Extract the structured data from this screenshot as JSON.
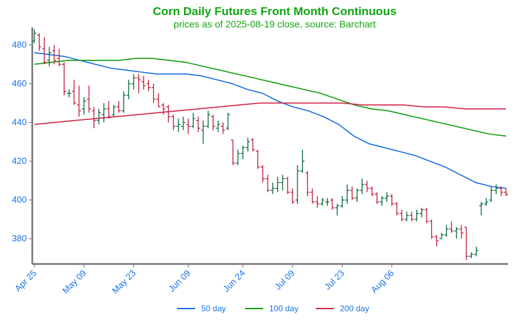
{
  "chart_data": {
    "type": "ohlc",
    "title": "Corn Daily Futures Front Month Continuous",
    "subtitle": "prices as of 2025-08-19 close, source: Barchart",
    "xlabel": "",
    "ylabel": "",
    "ylim": [
      367,
      489
    ],
    "y_ticks": [
      380,
      400,
      420,
      440,
      460,
      480
    ],
    "x_ticks": [
      "Apr 25",
      "May 09",
      "May 23",
      "Jun 09",
      "Jun 24",
      "Jul 09",
      "Jul 23",
      "Aug 06"
    ],
    "grid": false,
    "legend_position": "bottom",
    "colors": {
      "up": "#0b6a3a",
      "down": "#c0203a",
      "tick_text": "#1a73e8",
      "title": "#11a611"
    },
    "bars": [
      {
        "date": "Apr 25",
        "o": 482,
        "h": 488,
        "l": 481,
        "c": 486
      },
      {
        "date": "Apr 28",
        "o": 485,
        "h": 486,
        "l": 477,
        "c": 479
      },
      {
        "date": "Apr 29",
        "o": 478,
        "h": 484,
        "l": 470,
        "c": 471
      },
      {
        "date": "Apr 30",
        "o": 472,
        "h": 479,
        "l": 469,
        "c": 476
      },
      {
        "date": "May 01",
        "o": 477,
        "h": 480,
        "l": 470,
        "c": 472
      },
      {
        "date": "May 02",
        "o": 473,
        "h": 478,
        "l": 469,
        "c": 470
      },
      {
        "date": "May 05",
        "o": 470,
        "h": 471,
        "l": 454,
        "c": 456
      },
      {
        "date": "May 06",
        "o": 455,
        "h": 457,
        "l": 453,
        "c": 455
      },
      {
        "date": "May 07",
        "o": 456,
        "h": 462,
        "l": 449,
        "c": 450
      },
      {
        "date": "May 08",
        "o": 449,
        "h": 459,
        "l": 443,
        "c": 446
      },
      {
        "date": "May 09",
        "o": 447,
        "h": 453,
        "l": 444,
        "c": 451
      },
      {
        "date": "May 12",
        "o": 452,
        "h": 459,
        "l": 445,
        "c": 447
      },
      {
        "date": "May 13",
        "o": 446,
        "h": 448,
        "l": 437,
        "c": 441
      },
      {
        "date": "May 14",
        "o": 441,
        "h": 447,
        "l": 439,
        "c": 445
      },
      {
        "date": "May 15",
        "o": 444,
        "h": 450,
        "l": 440,
        "c": 447
      },
      {
        "date": "May 16",
        "o": 447,
        "h": 451,
        "l": 442,
        "c": 443
      },
      {
        "date": "May 19",
        "o": 444,
        "h": 449,
        "l": 443,
        "c": 448
      },
      {
        "date": "May 20",
        "o": 448,
        "h": 451,
        "l": 445,
        "c": 446
      },
      {
        "date": "May 21",
        "o": 446,
        "h": 456,
        "l": 445,
        "c": 454
      },
      {
        "date": "May 22",
        "o": 454,
        "h": 462,
        "l": 452,
        "c": 460
      },
      {
        "date": "May 23",
        "o": 460,
        "h": 465,
        "l": 457,
        "c": 463
      },
      {
        "date": "May 26",
        "o": 463,
        "h": 465,
        "l": 455,
        "c": 462
      },
      {
        "date": "May 27",
        "o": 461,
        "h": 464,
        "l": 457,
        "c": 459
      },
      {
        "date": "May 28",
        "o": 460,
        "h": 462,
        "l": 456,
        "c": 458
      },
      {
        "date": "May 29",
        "o": 458,
        "h": 460,
        "l": 450,
        "c": 452
      },
      {
        "date": "May 30",
        "o": 452,
        "h": 455,
        "l": 448,
        "c": 448
      },
      {
        "date": "Jun 02",
        "o": 449,
        "h": 450,
        "l": 444,
        "c": 447
      },
      {
        "date": "Jun 03",
        "o": 448,
        "h": 449,
        "l": 440,
        "c": 443
      },
      {
        "date": "Jun 04",
        "o": 443,
        "h": 444,
        "l": 436,
        "c": 438
      },
      {
        "date": "Jun 05",
        "o": 438,
        "h": 442,
        "l": 435,
        "c": 439
      },
      {
        "date": "Jun 06",
        "o": 438,
        "h": 443,
        "l": 436,
        "c": 440
      },
      {
        "date": "Jun 09",
        "o": 439,
        "h": 442,
        "l": 434,
        "c": 438
      },
      {
        "date": "Jun 10",
        "o": 438,
        "h": 445,
        "l": 437,
        "c": 442
      },
      {
        "date": "Jun 11",
        "o": 441,
        "h": 443,
        "l": 435,
        "c": 437
      },
      {
        "date": "Jun 12",
        "o": 436,
        "h": 441,
        "l": 429,
        "c": 438
      },
      {
        "date": "Jun 13",
        "o": 438,
        "h": 446,
        "l": 437,
        "c": 444
      },
      {
        "date": "Jun 16",
        "o": 443,
        "h": 444,
        "l": 436,
        "c": 438
      },
      {
        "date": "Jun 17",
        "o": 437,
        "h": 441,
        "l": 435,
        "c": 439
      },
      {
        "date": "Jun 18",
        "o": 438,
        "h": 440,
        "l": 434,
        "c": 436
      },
      {
        "date": "Jun 19",
        "o": 437,
        "h": 445,
        "l": 436,
        "c": 444
      },
      {
        "date": "Jun 20",
        "o": 431,
        "h": 431,
        "l": 418,
        "c": 419
      },
      {
        "date": "Jun 23",
        "o": 419,
        "h": 426,
        "l": 418,
        "c": 424
      },
      {
        "date": "Jun 24",
        "o": 424,
        "h": 428,
        "l": 421,
        "c": 427
      },
      {
        "date": "Jun 25",
        "o": 427,
        "h": 432,
        "l": 425,
        "c": 430
      },
      {
        "date": "Jun 26",
        "o": 431,
        "h": 432,
        "l": 425,
        "c": 426
      },
      {
        "date": "Jun 27",
        "o": 425,
        "h": 426,
        "l": 416,
        "c": 417
      },
      {
        "date": "Jun 30",
        "o": 417,
        "h": 418,
        "l": 409,
        "c": 411
      },
      {
        "date": "Jul 01",
        "o": 411,
        "h": 413,
        "l": 404,
        "c": 405
      },
      {
        "date": "Jul 02",
        "o": 405,
        "h": 409,
        "l": 403,
        "c": 406
      },
      {
        "date": "Jul 03",
        "o": 406,
        "h": 412,
        "l": 404,
        "c": 409
      },
      {
        "date": "Jul 07",
        "o": 409,
        "h": 413,
        "l": 405,
        "c": 411
      },
      {
        "date": "Jul 08",
        "o": 411,
        "h": 412,
        "l": 403,
        "c": 404
      },
      {
        "date": "Jul 09",
        "o": 404,
        "h": 406,
        "l": 398,
        "c": 399
      },
      {
        "date": "Jul 10",
        "o": 400,
        "h": 418,
        "l": 398,
        "c": 415
      },
      {
        "date": "Jul 11",
        "o": 415,
        "h": 426,
        "l": 414,
        "c": 420
      },
      {
        "date": "Jul 14",
        "o": 414,
        "h": 415,
        "l": 402,
        "c": 404
      },
      {
        "date": "Jul 15",
        "o": 404,
        "h": 406,
        "l": 398,
        "c": 399
      },
      {
        "date": "Jul 16",
        "o": 399,
        "h": 402,
        "l": 396,
        "c": 398
      },
      {
        "date": "Jul 17",
        "o": 398,
        "h": 401,
        "l": 397,
        "c": 400
      },
      {
        "date": "Jul 18",
        "o": 399,
        "h": 401,
        "l": 397,
        "c": 399
      },
      {
        "date": "Jul 21",
        "o": 400,
        "h": 401,
        "l": 395,
        "c": 396
      },
      {
        "date": "Jul 22",
        "o": 396,
        "h": 398,
        "l": 392,
        "c": 397
      },
      {
        "date": "Jul 23",
        "o": 397,
        "h": 402,
        "l": 396,
        "c": 400
      },
      {
        "date": "Jul 24",
        "o": 400,
        "h": 408,
        "l": 398,
        "c": 405
      },
      {
        "date": "Jul 25",
        "o": 405,
        "h": 407,
        "l": 400,
        "c": 401
      },
      {
        "date": "Jul 28",
        "o": 401,
        "h": 406,
        "l": 399,
        "c": 405
      },
      {
        "date": "Jul 29",
        "o": 405,
        "h": 411,
        "l": 403,
        "c": 408
      },
      {
        "date": "Jul 30",
        "o": 408,
        "h": 410,
        "l": 404,
        "c": 406
      },
      {
        "date": "Jul 31",
        "o": 406,
        "h": 407,
        "l": 402,
        "c": 403
      },
      {
        "date": "Aug 01",
        "o": 403,
        "h": 404,
        "l": 398,
        "c": 399
      },
      {
        "date": "Aug 04",
        "o": 399,
        "h": 402,
        "l": 397,
        "c": 401
      },
      {
        "date": "Aug 05",
        "o": 401,
        "h": 404,
        "l": 399,
        "c": 402
      },
      {
        "date": "Aug 06",
        "o": 402,
        "h": 403,
        "l": 397,
        "c": 398
      },
      {
        "date": "Aug 07",
        "o": 398,
        "h": 399,
        "l": 392,
        "c": 393
      },
      {
        "date": "Aug 08",
        "o": 393,
        "h": 395,
        "l": 389,
        "c": 390
      },
      {
        "date": "Aug 11",
        "o": 390,
        "h": 394,
        "l": 389,
        "c": 392
      },
      {
        "date": "Aug 12",
        "o": 392,
        "h": 394,
        "l": 389,
        "c": 390
      },
      {
        "date": "Aug 13",
        "o": 390,
        "h": 395,
        "l": 389,
        "c": 393
      },
      {
        "date": "Aug 14",
        "o": 393,
        "h": 396,
        "l": 391,
        "c": 395
      },
      {
        "date": "Aug 15",
        "o": 395,
        "h": 396,
        "l": 388,
        "c": 389
      },
      {
        "date": "Aug 18",
        "o": 389,
        "h": 390,
        "l": 380,
        "c": 381
      },
      {
        "date": "Aug 19",
        "o": 381,
        "h": 382,
        "l": 376,
        "c": 379
      },
      {
        "date": "Aug 20",
        "o": 380,
        "h": 383,
        "l": 380,
        "c": 382
      },
      {
        "date": "Aug 21",
        "o": 382,
        "h": 387,
        "l": 381,
        "c": 385
      },
      {
        "date": "Aug 22",
        "o": 385,
        "h": 389,
        "l": 383,
        "c": 384
      },
      {
        "date": "Aug 25",
        "o": 384,
        "h": 386,
        "l": 380,
        "c": 385
      },
      {
        "date": "Aug 26",
        "o": 385,
        "h": 387,
        "l": 380,
        "c": 383
      },
      {
        "date": "Aug 27",
        "o": 386,
        "h": 386,
        "l": 369,
        "c": 371
      },
      {
        "date": "Aug 28",
        "o": 371,
        "h": 373,
        "l": 370,
        "c": 372
      },
      {
        "date": "Aug 29",
        "o": 372,
        "h": 376,
        "l": 371,
        "c": 374
      },
      {
        "date": "Sep 02",
        "o": 397,
        "h": 399,
        "l": 392,
        "c": 398
      },
      {
        "date": "Sep 03",
        "o": 398,
        "h": 401,
        "l": 397,
        "c": 399
      },
      {
        "date": "Sep 04",
        "o": 400,
        "h": 407,
        "l": 399,
        "c": 405
      },
      {
        "date": "Sep 05",
        "o": 405,
        "h": 408,
        "l": 403,
        "c": 406
      },
      {
        "date": "Sep 08",
        "o": 406,
        "h": 407,
        "l": 402,
        "c": 404
      },
      {
        "date": "Sep 09",
        "o": 404,
        "h": 406,
        "l": 402,
        "c": 403
      }
    ],
    "series": [
      {
        "name": "50 day",
        "color": "#1a6fe0",
        "values": [
          476,
          475,
          474,
          472,
          470,
          468,
          467,
          466,
          465,
          465,
          465,
          464,
          462,
          460,
          457,
          455,
          451,
          448,
          446,
          443,
          439,
          433,
          429,
          427,
          425,
          423,
          420,
          417,
          413,
          409,
          407,
          406
        ]
      },
      {
        "name": "100 day",
        "color": "#11a011",
        "values": [
          470,
          471,
          472,
          472,
          472,
          472,
          473,
          473,
          472,
          471,
          469,
          467,
          465,
          463,
          461,
          459,
          457,
          455,
          452,
          449,
          447,
          446,
          444,
          442,
          440,
          438,
          436,
          434,
          433
        ]
      },
      {
        "name": "200 day",
        "color": "#d1284a",
        "values": [
          439,
          440,
          441,
          442,
          443,
          444,
          445,
          446,
          447,
          448,
          449,
          450,
          450,
          450,
          450,
          450,
          449,
          449,
          449,
          448,
          448,
          447,
          447,
          447
        ]
      }
    ]
  }
}
